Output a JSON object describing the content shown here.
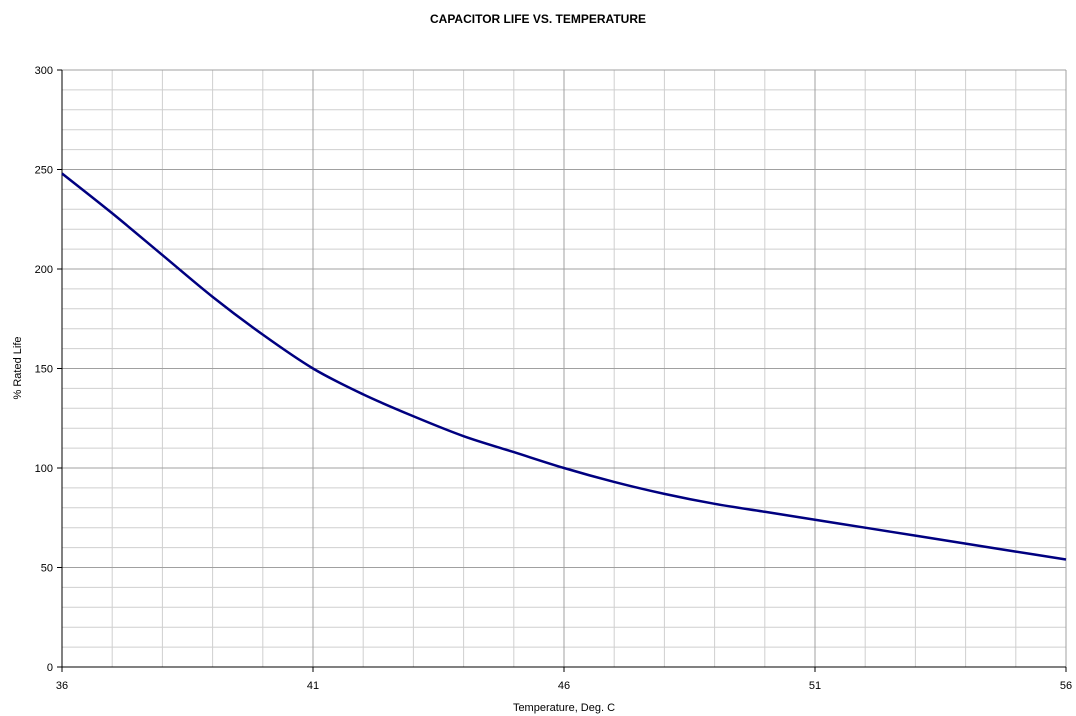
{
  "chart_data": {
    "type": "line",
    "title": "CAPACITOR LIFE VS. TEMPERATURE",
    "xlabel": "Temperature, Deg. C",
    "ylabel": "% Rated Life",
    "xlim": [
      36,
      56
    ],
    "ylim": [
      0,
      300
    ],
    "x_major_ticks": [
      36,
      41,
      46,
      51,
      56
    ],
    "y_major_ticks": [
      0,
      50,
      100,
      150,
      200,
      250,
      300
    ],
    "x_minor_step": 1,
    "y_minor_step": 10,
    "grid": true,
    "series": [
      {
        "color": "#000080",
        "x": [
          36,
          37,
          38,
          39,
          40,
          41,
          42,
          43,
          44,
          45,
          46,
          47,
          48,
          49,
          50,
          51,
          52,
          53,
          54,
          55,
          56
        ],
        "y": [
          248,
          228,
          207,
          186,
          167,
          150,
          137,
          126,
          116,
          108,
          100,
          93,
          87,
          82,
          78,
          74,
          70,
          66,
          62,
          58,
          54
        ]
      }
    ]
  },
  "colors": {
    "major_grid": "#a0a0a0",
    "minor_grid": "#cfcfcf",
    "axis": "#000000"
  }
}
